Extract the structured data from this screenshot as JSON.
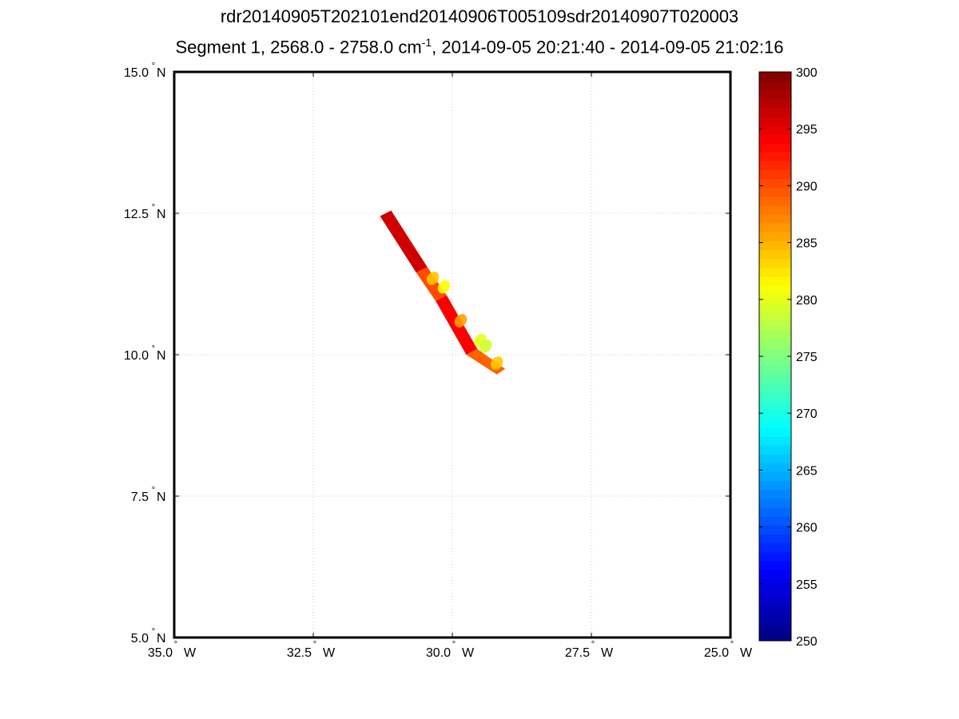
{
  "chart_data": {
    "type": "heatmap",
    "title": "rdr20140905T202101end20140906T005109sdr20140907T020003",
    "subtitle": {
      "prefix": "Segment 1, 2568.0 - 2758.0 cm",
      "superscript": "-1",
      "suffix": ", 2014-09-05 20:21:40 - 2014-09-05 21:02:16"
    },
    "map": {
      "lon_range": [
        -35.0,
        -25.0
      ],
      "lat_range": [
        5.0,
        15.0
      ],
      "lon_ticks": [
        -35.0,
        -32.5,
        -30.0,
        -27.5,
        -25.0
      ],
      "lat_ticks": [
        5.0,
        7.5,
        10.0,
        12.5,
        15.0
      ],
      "lon_tick_labels": [
        "35.0",
        "32.5",
        "30.0",
        "27.5",
        "25.0"
      ],
      "lat_tick_labels": [
        "5.0",
        "7.5",
        "10.0",
        "12.5",
        "15.0"
      ],
      "lon_hemisphere": "W",
      "lat_hemisphere": "N",
      "degree_symbol": "°",
      "grid": true,
      "grid_style": "dotted"
    },
    "swath": {
      "segments": [
        {
          "corners": [
            [
              -31.3,
              12.45
            ],
            [
              -31.1,
              12.55
            ],
            [
              -30.45,
              11.55
            ],
            [
              -30.65,
              11.45
            ]
          ],
          "value": 296
        },
        {
          "corners": [
            [
              -30.65,
              11.45
            ],
            [
              -30.45,
              11.55
            ],
            [
              -30.1,
              11.05
            ],
            [
              -30.3,
              10.95
            ]
          ],
          "value": 290
        },
        {
          "corners": [
            [
              -30.3,
              10.95
            ],
            [
              -30.1,
              11.05
            ],
            [
              -29.55,
              10.1
            ],
            [
              -29.75,
              10.0
            ]
          ],
          "value": 294
        },
        {
          "corners": [
            [
              -29.75,
              10.0
            ],
            [
              -29.55,
              10.1
            ],
            [
              -29.05,
              9.75
            ],
            [
              -29.2,
              9.65
            ]
          ],
          "value": 289
        }
      ],
      "warm_patches": [
        {
          "lon": -30.15,
          "lat": 11.2,
          "value": 281
        },
        {
          "lon": -30.35,
          "lat": 11.35,
          "value": 284
        },
        {
          "lon": -29.5,
          "lat": 10.25,
          "value": 280
        },
        {
          "lon": -29.4,
          "lat": 10.15,
          "value": 279
        },
        {
          "lon": -29.85,
          "lat": 10.6,
          "value": 286
        },
        {
          "lon": -29.2,
          "lat": 9.85,
          "value": 284
        }
      ]
    },
    "colorbar": {
      "colormap": "jet",
      "min": 250,
      "max": 300,
      "ticks": [
        250,
        255,
        260,
        265,
        270,
        275,
        280,
        285,
        290,
        295,
        300
      ],
      "tick_labels": [
        "250",
        "255",
        "260",
        "265",
        "270",
        "275",
        "280",
        "285",
        "290",
        "295",
        "300"
      ],
      "levels": 64
    }
  }
}
